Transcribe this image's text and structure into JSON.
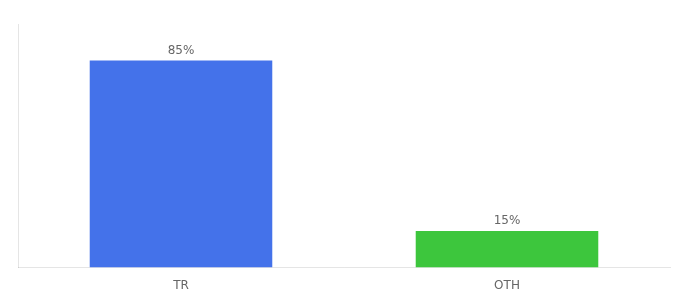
{
  "chart_data": {
    "type": "bar",
    "categories": [
      "TR",
      "OTH"
    ],
    "values": [
      85,
      15
    ],
    "value_labels": [
      "85%",
      "15%"
    ],
    "colors": [
      "#4472EA",
      "#3DC63D"
    ],
    "ylim": [
      0,
      100
    ],
    "grid": false,
    "data_labels": true,
    "tick_labels": "x"
  }
}
